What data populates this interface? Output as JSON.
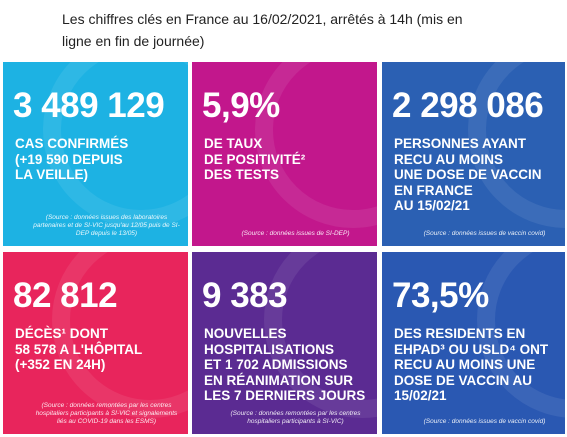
{
  "header": {
    "title": "Les chiffres clés en France au 16/02/2021, arrêtés à 14h (mis en ligne en fin de journée)"
  },
  "tiles": [
    {
      "number": "3 489 129",
      "lines": [
        "CAS CONFIRMÉS",
        "(+19 590 DEPUIS",
        "LA VEILLE)"
      ],
      "source": "(Source : données issues des laboratoires partenaires et de SI-VIC jusqu'au 12/05 puis de SI-DEP depuis le 13/05)"
    },
    {
      "number": "5,9%",
      "lines": [
        "DE TAUX",
        "DE POSITIVITÉ²",
        "DES TESTS"
      ],
      "source": "(Source : données issues de SI-DEP)"
    },
    {
      "number": "2 298 086",
      "lines": [
        "PERSONNES AYANT",
        "RECU AU MOINS",
        "UNE DOSE DE VACCIN",
        "EN FRANCE",
        "AU 15/02/21"
      ],
      "source": "(Source : données issues de vaccin covid)"
    },
    {
      "number": "82 812",
      "lines": [
        "DÉCÈS¹ DONT",
        "58 578 A L'HÔPITAL",
        "(+352 EN 24H)"
      ],
      "source": "(Source : données remontées par les centres hospitaliers participants à SI-VIC et signalements liés au COVID-19 dans les ESMS)"
    },
    {
      "number": "9 383",
      "lines": [
        "NOUVELLES",
        "HOSPITALISATIONS",
        "ET 1 702 ADMISSIONS",
        "EN RÉANIMATION SUR",
        "LES 7 DERNIERS JOURS"
      ],
      "source": "(Source : données remontées par les centres hospitaliers participants à SI-VIC)"
    },
    {
      "number": "73,5%",
      "lines": [
        "DES RESIDENTS EN",
        "EHPAD³ OU USLD⁴ ONT",
        "RECU AU MOINS UNE",
        "DOSE DE VACCIN AU",
        "15/02/21"
      ],
      "source": "(Source : données issues de vaccin covid)"
    }
  ]
}
